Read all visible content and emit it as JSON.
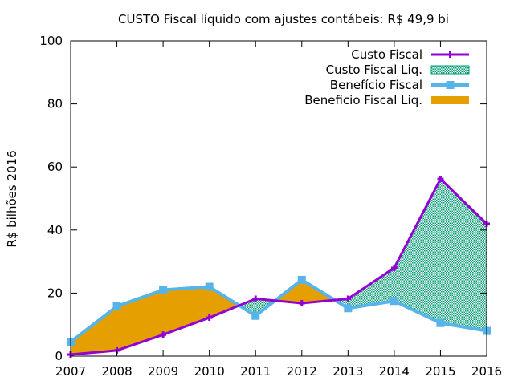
{
  "chart_data": {
    "type": "area",
    "title": "CUSTO Fiscal líquido com ajustes contábeis: R$ 49,9 bi",
    "xlabel": "",
    "ylabel": "R$ bilhões 2016",
    "ylim": [
      0,
      100
    ],
    "yticks": [
      0,
      20,
      40,
      60,
      80,
      100
    ],
    "categories": [
      "2007",
      "2008",
      "2009",
      "2010",
      "2011",
      "2012",
      "2013",
      "2014",
      "2015",
      "2016"
    ],
    "series": [
      {
        "name": "Custo Fiscal",
        "color": "#9400d3",
        "marker": "plus",
        "values": [
          0.5,
          1.8,
          6.8,
          12.2,
          18.2,
          16.8,
          18.2,
          28.0,
          56.2,
          42.0
        ]
      },
      {
        "name": "Benefício Fiscal",
        "color": "#56b4e9",
        "marker": "square",
        "values": [
          4.5,
          15.8,
          21.0,
          22.0,
          12.8,
          24.2,
          15.2,
          17.5,
          10.5,
          8.0
        ]
      }
    ],
    "fills": [
      {
        "name": "Custo Fiscal Liq.",
        "color": "#009e73",
        "pattern": "dots",
        "where": "Custo Fiscal above Benefício Fiscal"
      },
      {
        "name": "Beneficio Fiscal Liq.",
        "color": "#e69f00",
        "pattern": "solid",
        "where": "Benefício Fiscal above Custo Fiscal"
      }
    ],
    "legend_position": "top-right",
    "grid": false
  }
}
